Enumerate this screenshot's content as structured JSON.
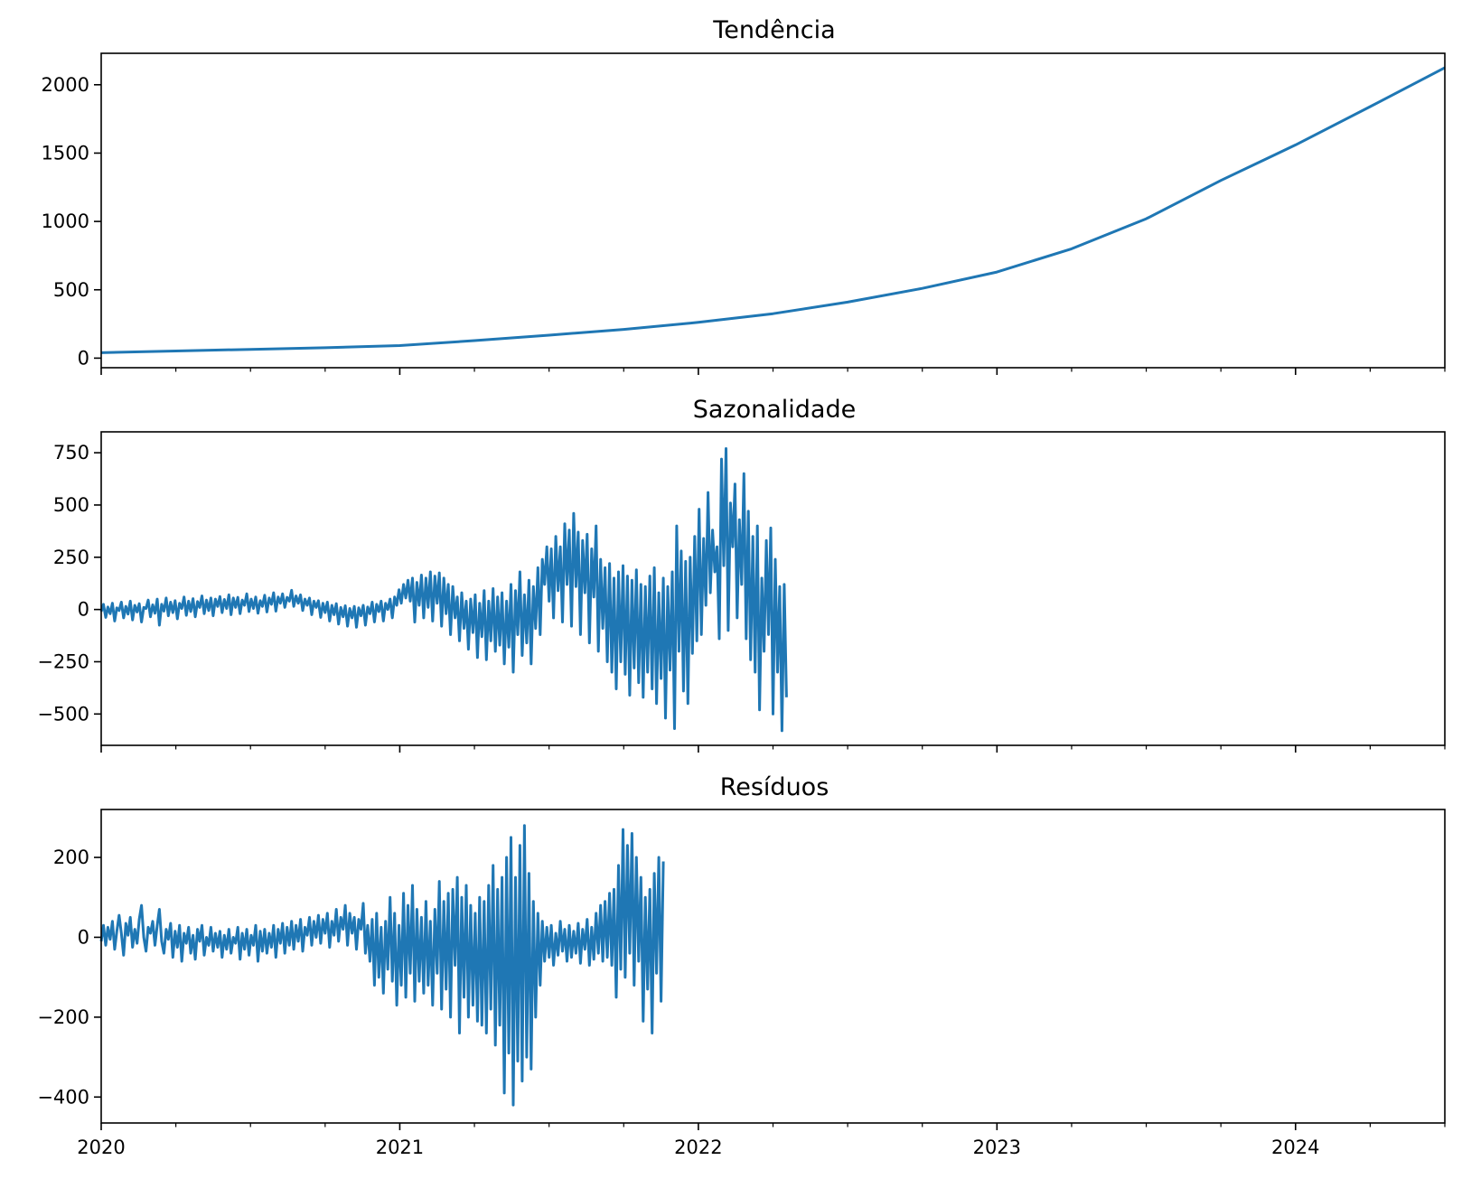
{
  "colors": {
    "line": "#1f77b4",
    "axis": "#000000",
    "background": "#ffffff"
  },
  "chart_data": [
    {
      "type": "line",
      "title": "Tendência",
      "xlabel": "",
      "ylabel": "",
      "x_range": [
        2020.0,
        2024.5
      ],
      "ylim": [
        -70,
        2230
      ],
      "yticks": [
        0,
        500,
        1000,
        1500,
        2000
      ],
      "ytick_labels": [
        "0",
        "500",
        "1000",
        "1500",
        "2000"
      ],
      "grid": false,
      "series": [
        {
          "name": "Tendência",
          "x": [
            2020.0,
            2020.25,
            2020.5,
            2020.75,
            2021.0,
            2021.25,
            2021.5,
            2021.75,
            2022.0,
            2022.25,
            2022.5,
            2022.75,
            2023.0,
            2023.25,
            2023.5,
            2023.75,
            2024.0,
            2024.25,
            2024.5
          ],
          "values": [
            40,
            52,
            64,
            76,
            92,
            128,
            168,
            210,
            262,
            325,
            410,
            510,
            630,
            800,
            1020,
            1300,
            1560,
            1840,
            2125
          ]
        }
      ]
    },
    {
      "type": "line",
      "title": "Sazonalidade",
      "xlabel": "",
      "ylabel": "",
      "x_range": [
        2020.0,
        2024.5
      ],
      "ylim": [
        -650,
        850
      ],
      "yticks": [
        -500,
        -250,
        0,
        250,
        500,
        750
      ],
      "ytick_labels": [
        "−500",
        "−250",
        "0",
        "250",
        "500",
        "750"
      ],
      "grid": false,
      "series": [
        {
          "name": "Sazonalidade",
          "x_start": 2020.0,
          "x_step": 0.0075,
          "values": [
            -10,
            25,
            -38,
            12,
            -20,
            30,
            -55,
            8,
            -5,
            35,
            -40,
            15,
            -22,
            40,
            -50,
            20,
            -12,
            28,
            -60,
            10,
            5,
            45,
            -35,
            22,
            -18,
            50,
            -75,
            25,
            -8,
            55,
            -30,
            35,
            -15,
            42,
            -45,
            30,
            5,
            60,
            -28,
            40,
            -10,
            52,
            -35,
            38,
            10,
            65,
            -20,
            45,
            -5,
            55,
            -30,
            50,
            15,
            62,
            -15,
            48,
            5,
            70,
            -25,
            55,
            10,
            58,
            -20,
            45,
            20,
            75,
            -10,
            50,
            5,
            60,
            -18,
            42,
            15,
            68,
            -12,
            55,
            25,
            80,
            -8,
            60,
            30,
            75,
            10,
            58,
            40,
            92,
            15,
            65,
            30,
            70,
            -5,
            50,
            20,
            55,
            -25,
            40,
            10,
            42,
            -38,
            30,
            -15,
            35,
            -55,
            20,
            -25,
            28,
            -70,
            10,
            -35,
            18,
            -80,
            5,
            -40,
            15,
            -85,
            8,
            -30,
            20,
            -75,
            12,
            -20,
            35,
            -60,
            25,
            -10,
            40,
            -55,
            30,
            0,
            50,
            -40,
            60,
            20,
            95,
            30,
            120,
            55,
            140,
            40,
            150,
            -60,
            130,
            20,
            165,
            -40,
            150,
            10,
            180,
            -55,
            160,
            30,
            175,
            -80,
            150,
            -20,
            120,
            -120,
            110,
            -40,
            60,
            -150,
            80,
            -90,
            40,
            -190,
            50,
            -110,
            70,
            -230,
            30,
            -130,
            90,
            -240,
            40,
            -150,
            100,
            -200,
            60,
            -170,
            80,
            -260,
            40,
            -180,
            120,
            -300,
            90,
            -120,
            180,
            -220,
            70,
            -160,
            140,
            -260,
            110,
            -90,
            200,
            -120,
            240,
            120,
            300,
            40,
            290,
            -40,
            350,
            90,
            300,
            -60,
            410,
            120,
            380,
            -80,
            460,
            110,
            370,
            -120,
            330,
            80,
            360,
            -160,
            290,
            60,
            400,
            -200,
            240,
            -90,
            200,
            -250,
            220,
            -300,
            150,
            -380,
            180,
            -250,
            210,
            -310,
            160,
            -410,
            140,
            -280,
            190,
            -350,
            120,
            -420,
            110,
            -300,
            160,
            -380,
            200,
            -450,
            80,
            -330,
            150,
            -520,
            110,
            -290,
            180,
            -570,
            400,
            -200,
            280,
            -390,
            230,
            -450,
            250,
            -210,
            350,
            -150,
            480,
            -120,
            340,
            20,
            560,
            80,
            380,
            180,
            300,
            -140,
            720,
            210,
            770,
            -100,
            510,
            300,
            600,
            -40,
            430,
            120,
            650,
            -140,
            470,
            -240,
            350,
            -300,
            400,
            -480,
            150,
            -200,
            330,
            -120,
            390,
            -500,
            240,
            -300,
            110,
            -580,
            120,
            -420
          ]
        }
      ]
    },
    {
      "type": "line",
      "title": "Resíduos",
      "xlabel": "",
      "ylabel": "",
      "x_range": [
        2020.0,
        2024.5
      ],
      "ylim": [
        -465,
        320
      ],
      "yticks": [
        -400,
        -200,
        0,
        200
      ],
      "ytick_labels": [
        "−400",
        "−200",
        "0",
        "200"
      ],
      "xticks": [
        2020,
        2021,
        2022,
        2023,
        2024
      ],
      "xtick_labels": [
        "2020",
        "2021",
        "2022",
        "2023",
        "2024"
      ],
      "grid": false,
      "series": [
        {
          "name": "Resíduos",
          "x_start": 2020.0,
          "x_step": 0.0075,
          "values": [
            -10,
            30,
            -20,
            25,
            -5,
            40,
            -30,
            15,
            55,
            10,
            -45,
            35,
            5,
            50,
            -25,
            20,
            -15,
            45,
            80,
            0,
            -35,
            25,
            10,
            40,
            -20,
            30,
            70,
            -10,
            -40,
            20,
            -5,
            35,
            -50,
            15,
            -25,
            30,
            -60,
            10,
            -15,
            25,
            -40,
            5,
            -55,
            20,
            -10,
            30,
            -45,
            0,
            -20,
            25,
            -35,
            10,
            -25,
            15,
            -50,
            5,
            -30,
            20,
            -40,
            0,
            -15,
            25,
            -55,
            10,
            -30,
            20,
            -45,
            5,
            -20,
            30,
            -60,
            15,
            -35,
            20,
            -40,
            10,
            -25,
            30,
            -50,
            20,
            -15,
            35,
            -40,
            25,
            -20,
            40,
            -30,
            30,
            -10,
            45,
            -35,
            25,
            5,
            50,
            -20,
            40,
            0,
            55,
            -15,
            45,
            10,
            60,
            -25,
            40,
            5,
            70,
            -10,
            50,
            20,
            80,
            -20,
            60,
            10,
            50,
            -30,
            45,
            20,
            85,
            -40,
            30,
            -60,
            45,
            -120,
            60,
            -100,
            25,
            -140,
            40,
            -80,
            100,
            -110,
            60,
            -170,
            30,
            -120,
            110,
            -150,
            80,
            -90,
            130,
            -160,
            70,
            -110,
            50,
            -140,
            90,
            -120,
            40,
            -170,
            70,
            -90,
            140,
            -180,
            90,
            -130,
            110,
            -200,
            120,
            -70,
            150,
            -240,
            100,
            -150,
            130,
            -200,
            80,
            -170,
            60,
            -210,
            100,
            -220,
            90,
            -240,
            130,
            -180,
            180,
            -270,
            120,
            -220,
            150,
            -390,
            200,
            -290,
            250,
            -420,
            150,
            -310,
            230,
            -360,
            280,
            -300,
            160,
            -330,
            90,
            -200,
            60,
            -120,
            40,
            -60,
            25,
            -50,
            30,
            -70,
            10,
            -45,
            40,
            -35,
            20,
            -60,
            30,
            -50,
            15,
            -40,
            35,
            -65,
            20,
            -30,
            45,
            -70,
            25,
            -55,
            60,
            -40,
            80,
            -60,
            90,
            -50,
            110,
            -70,
            120,
            -150,
            180,
            -80,
            270,
            -100,
            230,
            -40,
            260,
            -120,
            200,
            -60,
            150,
            -210,
            100,
            -130,
            120,
            -240,
            160,
            -90,
            200,
            -160,
            190
          ]
        }
      ]
    }
  ]
}
